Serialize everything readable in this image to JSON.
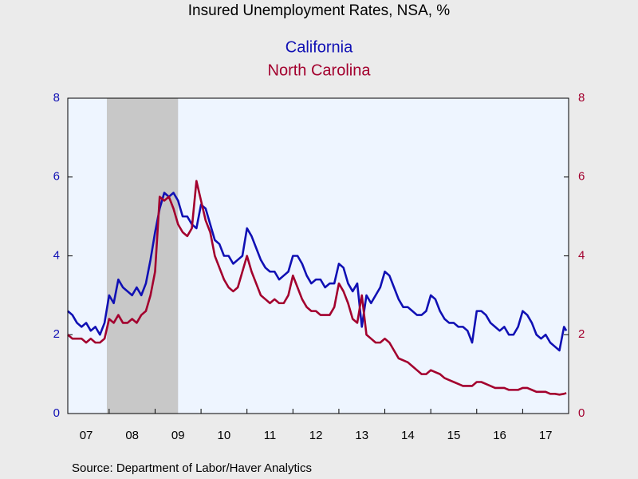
{
  "chart_data": {
    "type": "line",
    "title": "Insured Unemployment Rates, NSA, %",
    "source": "Source:  Department of Labor/Haver Analytics",
    "shaded_period": [
      2007.95,
      2009.5
    ],
    "xlim": [
      2007.1,
      2018.0
    ],
    "xticks": [
      {
        "value": 2007,
        "label": "07"
      },
      {
        "value": 2008,
        "label": "08"
      },
      {
        "value": 2009,
        "label": "09"
      },
      {
        "value": 2010,
        "label": "10"
      },
      {
        "value": 2011,
        "label": "11"
      },
      {
        "value": 2012,
        "label": "12"
      },
      {
        "value": 2013,
        "label": "13"
      },
      {
        "value": 2014,
        "label": "14"
      },
      {
        "value": 2015,
        "label": "15"
      },
      {
        "value": 2016,
        "label": "16"
      },
      {
        "value": 2017,
        "label": "17"
      }
    ],
    "ylim": [
      0,
      8
    ],
    "yticks": [
      0,
      2,
      4,
      6,
      8
    ],
    "y2lim": [
      0,
      8
    ],
    "y2ticks": [
      0,
      2,
      4,
      6,
      8
    ],
    "x": [
      2007.1,
      2007.2,
      2007.3,
      2007.4,
      2007.5,
      2007.6,
      2007.7,
      2007.8,
      2007.9,
      2008.0,
      2008.1,
      2008.2,
      2008.3,
      2008.4,
      2008.5,
      2008.6,
      2008.7,
      2008.8,
      2008.9,
      2009.0,
      2009.1,
      2009.2,
      2009.3,
      2009.4,
      2009.5,
      2009.6,
      2009.7,
      2009.8,
      2009.9,
      2010.0,
      2010.1,
      2010.2,
      2010.3,
      2010.4,
      2010.5,
      2010.6,
      2010.7,
      2010.8,
      2010.9,
      2011.0,
      2011.1,
      2011.2,
      2011.3,
      2011.4,
      2011.5,
      2011.6,
      2011.7,
      2011.8,
      2011.9,
      2012.0,
      2012.1,
      2012.2,
      2012.3,
      2012.4,
      2012.5,
      2012.6,
      2012.7,
      2012.8,
      2012.9,
      2013.0,
      2013.1,
      2013.2,
      2013.3,
      2013.4,
      2013.5,
      2013.6,
      2013.7,
      2013.8,
      2013.9,
      2014.0,
      2014.1,
      2014.2,
      2014.3,
      2014.4,
      2014.5,
      2014.6,
      2014.7,
      2014.8,
      2014.9,
      2015.0,
      2015.1,
      2015.2,
      2015.3,
      2015.4,
      2015.5,
      2015.6,
      2015.7,
      2015.8,
      2015.9,
      2016.0,
      2016.1,
      2016.2,
      2016.3,
      2016.4,
      2016.5,
      2016.6,
      2016.7,
      2016.8,
      2016.9,
      2017.0,
      2017.1,
      2017.2,
      2017.3,
      2017.4,
      2017.5,
      2017.6,
      2017.7,
      2017.8,
      2017.9,
      2017.95
    ],
    "series": [
      {
        "name": "California",
        "color": "#1010b4",
        "values": [
          2.6,
          2.5,
          2.3,
          2.2,
          2.3,
          2.1,
          2.2,
          2.0,
          2.3,
          3.0,
          2.8,
          3.4,
          3.2,
          3.1,
          3.0,
          3.2,
          3.0,
          3.3,
          3.9,
          4.6,
          5.2,
          5.6,
          5.5,
          5.6,
          5.4,
          5.0,
          5.0,
          4.8,
          4.7,
          5.3,
          5.2,
          4.8,
          4.4,
          4.3,
          4.0,
          4.0,
          3.8,
          3.9,
          4.0,
          4.7,
          4.5,
          4.2,
          3.9,
          3.7,
          3.6,
          3.6,
          3.4,
          3.5,
          3.6,
          4.0,
          4.0,
          3.8,
          3.5,
          3.3,
          3.4,
          3.4,
          3.2,
          3.3,
          3.3,
          3.8,
          3.7,
          3.3,
          3.1,
          3.3,
          2.2,
          3.0,
          2.8,
          3.0,
          3.2,
          3.6,
          3.5,
          3.2,
          2.9,
          2.7,
          2.7,
          2.6,
          2.5,
          2.5,
          2.6,
          3.0,
          2.9,
          2.6,
          2.4,
          2.3,
          2.3,
          2.2,
          2.2,
          2.1,
          1.8,
          2.6,
          2.6,
          2.5,
          2.3,
          2.2,
          2.1,
          2.2,
          2.0,
          2.0,
          2.2,
          2.6,
          2.5,
          2.3,
          2.0,
          1.9,
          2.0,
          1.8,
          1.7,
          1.6,
          2.2,
          2.1
        ]
      },
      {
        "name": "North Carolina",
        "color": "#a3002e",
        "axis": "y2",
        "values": [
          2.0,
          1.9,
          1.9,
          1.9,
          1.8,
          1.9,
          1.8,
          1.8,
          1.9,
          2.4,
          2.3,
          2.5,
          2.3,
          2.3,
          2.4,
          2.3,
          2.5,
          2.6,
          3.0,
          3.6,
          5.5,
          5.4,
          5.5,
          5.2,
          4.8,
          4.6,
          4.5,
          4.7,
          5.9,
          5.4,
          4.9,
          4.6,
          4.0,
          3.7,
          3.4,
          3.2,
          3.1,
          3.2,
          3.6,
          4.0,
          3.6,
          3.3,
          3.0,
          2.9,
          2.8,
          2.9,
          2.8,
          2.8,
          3.0,
          3.5,
          3.2,
          2.9,
          2.7,
          2.6,
          2.6,
          2.5,
          2.5,
          2.5,
          2.7,
          3.3,
          3.1,
          2.8,
          2.4,
          2.3,
          3.0,
          2.0,
          1.9,
          1.8,
          1.8,
          1.9,
          1.8,
          1.6,
          1.4,
          1.35,
          1.3,
          1.2,
          1.1,
          1.0,
          1.0,
          1.1,
          1.05,
          1.0,
          0.9,
          0.85,
          0.8,
          0.75,
          0.7,
          0.7,
          0.7,
          0.8,
          0.8,
          0.75,
          0.7,
          0.65,
          0.65,
          0.65,
          0.6,
          0.6,
          0.6,
          0.65,
          0.65,
          0.6,
          0.55,
          0.55,
          0.55,
          0.5,
          0.5,
          0.48,
          0.5,
          0.52
        ]
      }
    ]
  }
}
